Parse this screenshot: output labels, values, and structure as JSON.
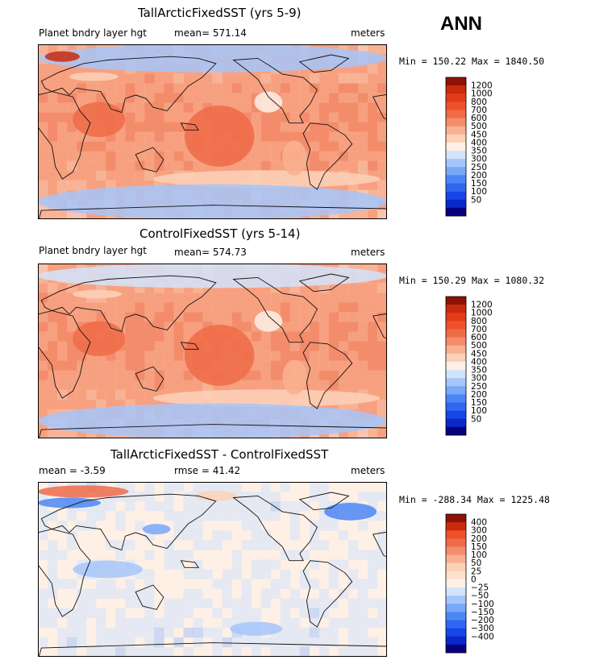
{
  "page": {
    "season": "ANN"
  },
  "colors": {
    "abs_scale": [
      "#07007d",
      "#0a27c8",
      "#1746e6",
      "#2f67f2",
      "#4c86f6",
      "#78a8f8",
      "#a6c5fa",
      "#d2e3fc",
      "#fff0e6",
      "#fcd1b8",
      "#f9b091",
      "#f38d6c",
      "#ef6b48",
      "#ee512a",
      "#e33b18",
      "#c92a0c",
      "#8e1206"
    ],
    "diff_scale": [
      "#07007d",
      "#0a27c8",
      "#1746e6",
      "#2f67f2",
      "#4c86f6",
      "#78a8f8",
      "#a6c5fa",
      "#d2e3fc",
      "#fff0e6",
      "#fde0cd",
      "#fcd1b8",
      "#f9b091",
      "#f38d6c",
      "#ef6b48",
      "#ee512a",
      "#c92a0c",
      "#8e1206"
    ],
    "coast": "#111111",
    "frame": "#000000"
  },
  "chart_data": [
    {
      "type": "heatmap",
      "title": "TallArcticFixedSST (yrs 5-9)",
      "variable": "Planet bndry layer hgt",
      "stat_text": "mean= 571.14",
      "units": "meters",
      "minmax": "Min = 150.22 Max = 1840.50",
      "base": 620,
      "levels": [
        50,
        100,
        150,
        200,
        250,
        300,
        350,
        400,
        450,
        500,
        600,
        700,
        800,
        1000,
        1200
      ],
      "level_labels": [
        "1200",
        "1000",
        "800",
        "700",
        "600",
        "500",
        "450",
        "400",
        "350",
        "300",
        "250",
        "200",
        "150",
        "100",
        "50"
      ]
    },
    {
      "type": "heatmap",
      "title": "ControlFixedSST (yrs 5-14)",
      "variable": "Planet bndry layer hgt",
      "stat_text": "mean= 574.73",
      "units": "meters",
      "minmax": "Min = 150.29 Max = 1080.32",
      "base": 620,
      "levels": [
        50,
        100,
        150,
        200,
        250,
        300,
        350,
        400,
        450,
        500,
        600,
        700,
        800,
        1000,
        1200
      ],
      "level_labels": [
        "1200",
        "1000",
        "800",
        "700",
        "600",
        "500",
        "450",
        "400",
        "350",
        "300",
        "250",
        "200",
        "150",
        "100",
        "50"
      ]
    },
    {
      "type": "heatmap",
      "title": "TallArcticFixedSST - ControlFixedSST",
      "stat_text": "mean =  -3.59",
      "rmse_text": "rmse =  41.42",
      "units": "meters",
      "minmax": "Min = -288.34 Max = 1225.48",
      "base": 0,
      "levels": [
        -400,
        -300,
        -200,
        -150,
        -100,
        -50,
        -25,
        0,
        25,
        50,
        100,
        150,
        200,
        300,
        400
      ],
      "level_labels": [
        "400",
        "300",
        "200",
        "150",
        "100",
        "50",
        "25",
        "0",
        "−25",
        "−50",
        "−100",
        "−150",
        "−200",
        "−300",
        "−400"
      ]
    }
  ]
}
